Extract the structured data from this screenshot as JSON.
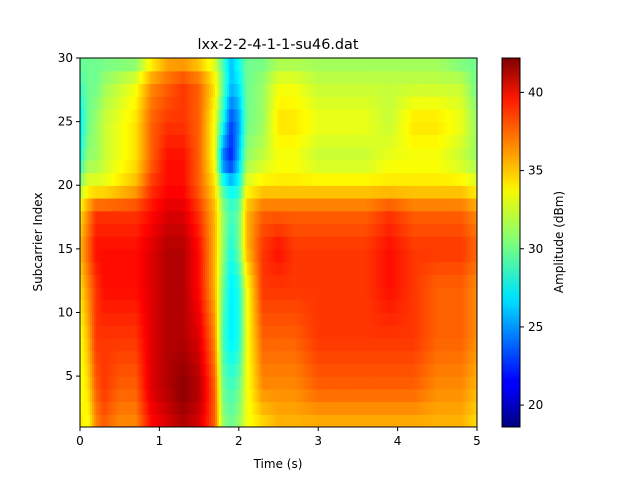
{
  "chart_data": {
    "type": "heatmap",
    "title": "lxx-2-2-4-1-1-su46.dat",
    "xlabel": "Time (s)",
    "ylabel": "Subcarrier Index",
    "colorbar_label": "Amplitude (dBm)",
    "colormap": "jet",
    "xlim": [
      0,
      5
    ],
    "ylim": [
      1,
      30
    ],
    "clim": [
      18.6,
      42.2
    ],
    "x_ticks": [
      "0",
      "1",
      "2",
      "3",
      "4",
      "5"
    ],
    "y_ticks": [
      "5",
      "10",
      "15",
      "20",
      "25",
      "30"
    ],
    "colorbar_ticks": [
      "20",
      "25",
      "30",
      "35",
      "40"
    ],
    "x_tick_values": [
      0,
      1,
      2,
      3,
      4,
      5
    ],
    "y_tick_values": [
      5,
      10,
      15,
      20,
      25,
      30
    ],
    "colorbar_tick_values": [
      20,
      25,
      30,
      35,
      40
    ],
    "time_samples": [
      0.0,
      0.1,
      0.2,
      0.3,
      0.5,
      0.7,
      0.9,
      1.1,
      1.3,
      1.5,
      1.7,
      1.8,
      1.9,
      2.0,
      2.1,
      2.3,
      2.5,
      2.7,
      3.0,
      3.3,
      3.6,
      3.9,
      4.2,
      4.5,
      4.8,
      5.0
    ],
    "subcarrier_samples": [
      1,
      4,
      8,
      12,
      15,
      18,
      20,
      22,
      25,
      28,
      30
    ],
    "amplitude_grid": [
      [
        34,
        33,
        36,
        37,
        36,
        36,
        39,
        40,
        41,
        40,
        37,
        31,
        30,
        31,
        33,
        34,
        35,
        35,
        35,
        35,
        35,
        35,
        35,
        35,
        35,
        34
      ],
      [
        33,
        34,
        37,
        38,
        37,
        37,
        40,
        41,
        42,
        41,
        37,
        30,
        29,
        30,
        33,
        36,
        36,
        36,
        37,
        37,
        37,
        37,
        37,
        36,
        36,
        35
      ],
      [
        33,
        35,
        38,
        38,
        38,
        38,
        40,
        41,
        41,
        40,
        36,
        29,
        27,
        28,
        33,
        37,
        37,
        37,
        38,
        38,
        38,
        38,
        38,
        37,
        37,
        36
      ],
      [
        34,
        36,
        38,
        39,
        39,
        39,
        40,
        41,
        41,
        39,
        35,
        30,
        27,
        28,
        33,
        38,
        38,
        38,
        38,
        38,
        38,
        39,
        38,
        37,
        37,
        36
      ],
      [
        35,
        37,
        39,
        39,
        39,
        39,
        40,
        41,
        41,
        39,
        35,
        31,
        28,
        30,
        35,
        38,
        39,
        38,
        38,
        38,
        38,
        39,
        38,
        38,
        38,
        37
      ],
      [
        34,
        36,
        38,
        38,
        38,
        38,
        39,
        40,
        40,
        38,
        35,
        31,
        29,
        30,
        35,
        37,
        37,
        37,
        37,
        37,
        37,
        38,
        37,
        37,
        37,
        36
      ],
      [
        31,
        33,
        33,
        33,
        34,
        35,
        38,
        39,
        39,
        37,
        34,
        29,
        27,
        28,
        33,
        34,
        34,
        34,
        34,
        34,
        34,
        34,
        34,
        34,
        34,
        33
      ],
      [
        28,
        31,
        31,
        32,
        33,
        34,
        37,
        39,
        39,
        37,
        33,
        24,
        22,
        26,
        31,
        32,
        33,
        33,
        32,
        32,
        32,
        33,
        33,
        33,
        32,
        31
      ],
      [
        27,
        30,
        31,
        32,
        33,
        34,
        37,
        38,
        38,
        37,
        33,
        28,
        23,
        25,
        30,
        31,
        34,
        34,
        33,
        33,
        33,
        32,
        34,
        34,
        33,
        31
      ],
      [
        29,
        30,
        30,
        31,
        32,
        33,
        36,
        37,
        38,
        37,
        34,
        30,
        26,
        27,
        30,
        31,
        33,
        33,
        32,
        32,
        32,
        32,
        32,
        32,
        32,
        30
      ],
      [
        30,
        30,
        30,
        30,
        30,
        30,
        33,
        35,
        35,
        34,
        32,
        29,
        26,
        28,
        30,
        30,
        31,
        31,
        31,
        31,
        31,
        31,
        31,
        31,
        30,
        30
      ]
    ]
  }
}
